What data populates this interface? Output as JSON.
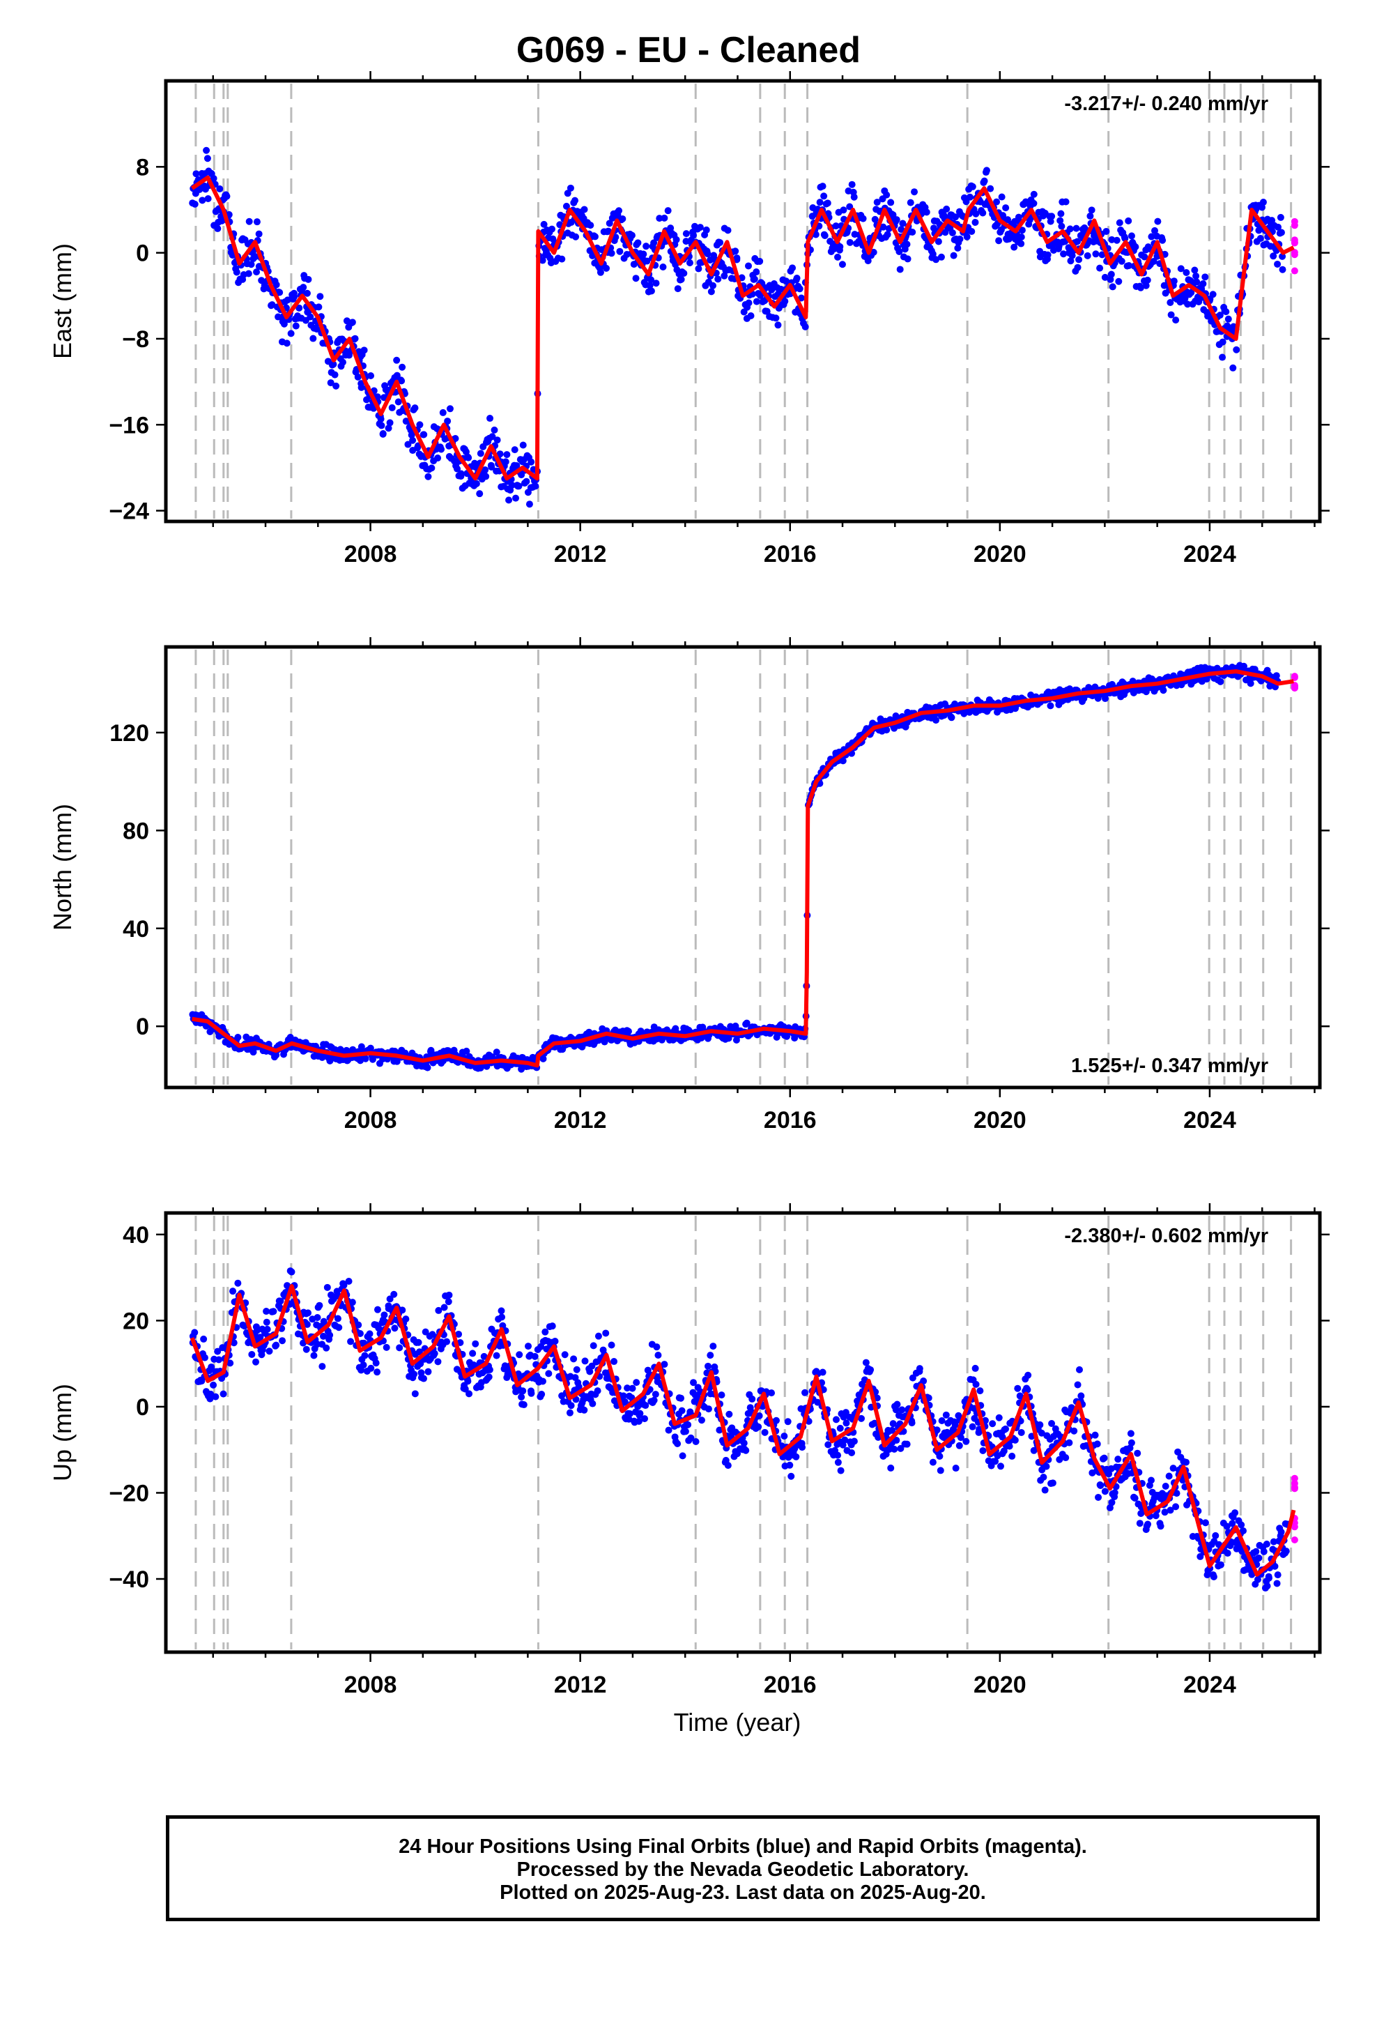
{
  "title": "G069  - EU - Cleaned",
  "xlabel": "Time (year)",
  "footer": {
    "line1": "24 Hour Positions Using Final Orbits (blue) and Rapid Orbits (magenta).",
    "line2": "Processed by the Nevada Geodetic Laboratory.",
    "line3": "Plotted on 2025-Aug-23. Last data on 2025-Aug-20."
  },
  "colors": {
    "final": "#0000ff",
    "rapid": "#ff00ff",
    "model": "#ff0000",
    "event_line": "#bbbbbb"
  },
  "chart_data": [
    {
      "type": "scatter",
      "ylabel": "East (mm)",
      "rate_text": "-3.217+/- 0.240 mm/yr",
      "rate_position": "top-right",
      "xlim": [
        2004.1,
        2026.1
      ],
      "ylim": [
        -25,
        16
      ],
      "xticks": [
        2008,
        2012,
        2016,
        2020,
        2024
      ],
      "yticks": [
        -24,
        -16,
        -8,
        0,
        8
      ],
      "events": [
        2004.67,
        2005.02,
        2005.2,
        2005.28,
        2006.49,
        2011.2,
        2014.2,
        2015.43,
        2015.9,
        2016.33,
        2019.38,
        2022.07,
        2023.99,
        2024.28,
        2024.59,
        2025.02,
        2025.55
      ],
      "series": [
        {
          "x": [
            2004.6,
            2004.9,
            2005.2,
            2005.5,
            2005.8,
            2006.1,
            2006.4,
            2006.7,
            2007.0,
            2007.3,
            2007.6,
            2007.9,
            2008.2,
            2008.5,
            2008.8,
            2009.1,
            2009.4,
            2009.7,
            2010.0,
            2010.3,
            2010.6,
            2010.9,
            2011.18,
            2011.2,
            2011.5,
            2011.8,
            2012.1,
            2012.4,
            2012.7,
            2013.0,
            2013.3,
            2013.6,
            2013.9,
            2014.2,
            2014.5,
            2014.8,
            2015.1,
            2015.4,
            2015.7,
            2016.0,
            2016.3,
            2016.34,
            2016.6,
            2016.9,
            2017.2,
            2017.5,
            2017.8,
            2018.1,
            2018.4,
            2018.7,
            2019.0,
            2019.3,
            2019.4,
            2019.7,
            2020.0,
            2020.3,
            2020.6,
            2020.9,
            2021.2,
            2021.5,
            2021.8,
            2022.1,
            2022.4,
            2022.7,
            2023.0,
            2023.3,
            2023.6,
            2023.9,
            2024.2,
            2024.5,
            2024.8,
            2025.1,
            2025.4,
            2025.6
          ],
          "y": [
            6.0,
            7.0,
            4.0,
            -1.0,
            1.0,
            -3.0,
            -6.0,
            -4.0,
            -6.0,
            -10.0,
            -8.0,
            -12.0,
            -15.0,
            -12.0,
            -16.0,
            -19.0,
            -16.0,
            -19.0,
            -21.0,
            -18.0,
            -21.0,
            -20.0,
            -21.0,
            2.0,
            0.0,
            4.0,
            2.0,
            -1.0,
            3.0,
            0.0,
            -2.0,
            2.0,
            -1.0,
            1.0,
            -2.0,
            1.0,
            -4.0,
            -3.0,
            -5.0,
            -3.0,
            -6.0,
            1.0,
            4.0,
            1.0,
            4.0,
            0.0,
            4.0,
            1.0,
            4.0,
            1.0,
            3.0,
            2.0,
            4.0,
            6.0,
            3.0,
            2.0,
            4.0,
            1.0,
            2.0,
            0.0,
            3.0,
            -1.0,
            1.0,
            -2.0,
            1.0,
            -4.0,
            -3.0,
            -4.0,
            -7.0,
            -8.0,
            4.0,
            2.0,
            0.0,
            0.5
          ]
        }
      ]
    },
    {
      "type": "scatter",
      "ylabel": "North (mm)",
      "rate_text": "1.525+/- 0.347 mm/yr",
      "rate_position": "bottom-right",
      "xlim": [
        2004.1,
        2026.1
      ],
      "ylim": [
        -25,
        155
      ],
      "xticks": [
        2008,
        2012,
        2016,
        2020,
        2024
      ],
      "yticks": [
        0,
        40,
        80,
        120
      ],
      "events": [
        2004.67,
        2005.02,
        2005.2,
        2005.28,
        2006.49,
        2011.2,
        2014.2,
        2015.43,
        2015.9,
        2016.33,
        2019.38,
        2022.07,
        2023.99,
        2024.28,
        2024.59,
        2025.02,
        2025.55
      ],
      "series": [
        {
          "x": [
            2004.6,
            2004.9,
            2005.2,
            2005.5,
            2005.8,
            2006.2,
            2006.5,
            2007.0,
            2007.5,
            2008.0,
            2008.5,
            2009.0,
            2009.5,
            2010.0,
            2010.5,
            2011.0,
            2011.18,
            2011.2,
            2011.5,
            2012.0,
            2012.5,
            2013.0,
            2013.5,
            2014.0,
            2014.5,
            2015.0,
            2015.5,
            2016.0,
            2016.3,
            2016.32,
            2016.34,
            2016.5,
            2016.8,
            2017.2,
            2017.6,
            2018.0,
            2018.5,
            2019.0,
            2019.5,
            2020.0,
            2020.5,
            2021.0,
            2021.5,
            2022.0,
            2022.5,
            2023.0,
            2023.5,
            2024.0,
            2024.5,
            2025.0,
            2025.3,
            2025.6
          ],
          "y": [
            3.0,
            2.0,
            -3.0,
            -8.0,
            -7.0,
            -10.0,
            -7.0,
            -10.0,
            -12.0,
            -11.0,
            -12.0,
            -14.0,
            -12.0,
            -15.0,
            -14.0,
            -15.0,
            -16.0,
            -12.0,
            -7.0,
            -6.0,
            -3.0,
            -5.0,
            -3.0,
            -4.0,
            -2.0,
            -3.0,
            -1.0,
            -2.0,
            -3.0,
            22.0,
            90.0,
            100.0,
            108.0,
            114.0,
            122.0,
            124.0,
            128.0,
            129.0,
            131.0,
            131.0,
            133.0,
            134.0,
            136.0,
            137.0,
            139.0,
            140.0,
            142.0,
            144.0,
            145.0,
            143.0,
            140.0,
            141.0
          ]
        }
      ]
    },
    {
      "type": "scatter",
      "ylabel": "Up (mm)",
      "rate_text": "-2.380+/- 0.602 mm/yr",
      "rate_position": "top-right",
      "xlim": [
        2004.1,
        2026.1
      ],
      "ylim": [
        -57,
        45
      ],
      "xticks": [
        2008,
        2012,
        2016,
        2020,
        2024
      ],
      "yticks": [
        -40,
        -20,
        0,
        20,
        40
      ],
      "events": [
        2004.67,
        2005.02,
        2005.2,
        2005.28,
        2006.49,
        2011.2,
        2014.2,
        2015.43,
        2015.9,
        2016.33,
        2019.38,
        2022.07,
        2023.99,
        2024.28,
        2024.59,
        2025.02,
        2025.55
      ],
      "series": [
        {
          "x": [
            2004.6,
            2004.9,
            2005.2,
            2005.5,
            2005.8,
            2006.2,
            2006.5,
            2006.8,
            2007.2,
            2007.5,
            2007.8,
            2008.2,
            2008.5,
            2008.8,
            2009.2,
            2009.5,
            2009.8,
            2010.2,
            2010.5,
            2010.8,
            2011.2,
            2011.5,
            2011.8,
            2012.2,
            2012.5,
            2012.8,
            2013.2,
            2013.5,
            2013.8,
            2014.2,
            2014.5,
            2014.8,
            2015.2,
            2015.5,
            2015.8,
            2016.2,
            2016.5,
            2016.8,
            2017.2,
            2017.5,
            2017.8,
            2018.2,
            2018.5,
            2018.8,
            2019.2,
            2019.5,
            2019.8,
            2020.2,
            2020.5,
            2020.8,
            2021.2,
            2021.5,
            2021.8,
            2022.1,
            2022.5,
            2022.8,
            2023.2,
            2023.5,
            2023.8,
            2024.0,
            2024.5,
            2024.9,
            2025.2,
            2025.5,
            2025.6
          ],
          "y": [
            16.0,
            6.0,
            8.0,
            26.0,
            14.0,
            17.0,
            28.0,
            15.0,
            19.0,
            27.0,
            13.0,
            16.0,
            23.0,
            10.0,
            14.0,
            21.0,
            7.0,
            10.0,
            18.0,
            5.0,
            9.0,
            14.0,
            2.0,
            5.0,
            12.0,
            -1.0,
            3.0,
            10.0,
            -4.0,
            -2.0,
            8.0,
            -9.0,
            -5.0,
            3.0,
            -11.0,
            -7.0,
            7.0,
            -8.0,
            -5.0,
            6.0,
            -9.0,
            -4.0,
            5.0,
            -10.0,
            -6.0,
            4.0,
            -11.0,
            -7.0,
            3.0,
            -13.0,
            -8.0,
            1.0,
            -12.0,
            -19.0,
            -11.0,
            -25.0,
            -22.0,
            -14.0,
            -28.0,
            -37.0,
            -28.0,
            -39.0,
            -36.0,
            -29.0,
            -24.0
          ]
        }
      ]
    }
  ]
}
